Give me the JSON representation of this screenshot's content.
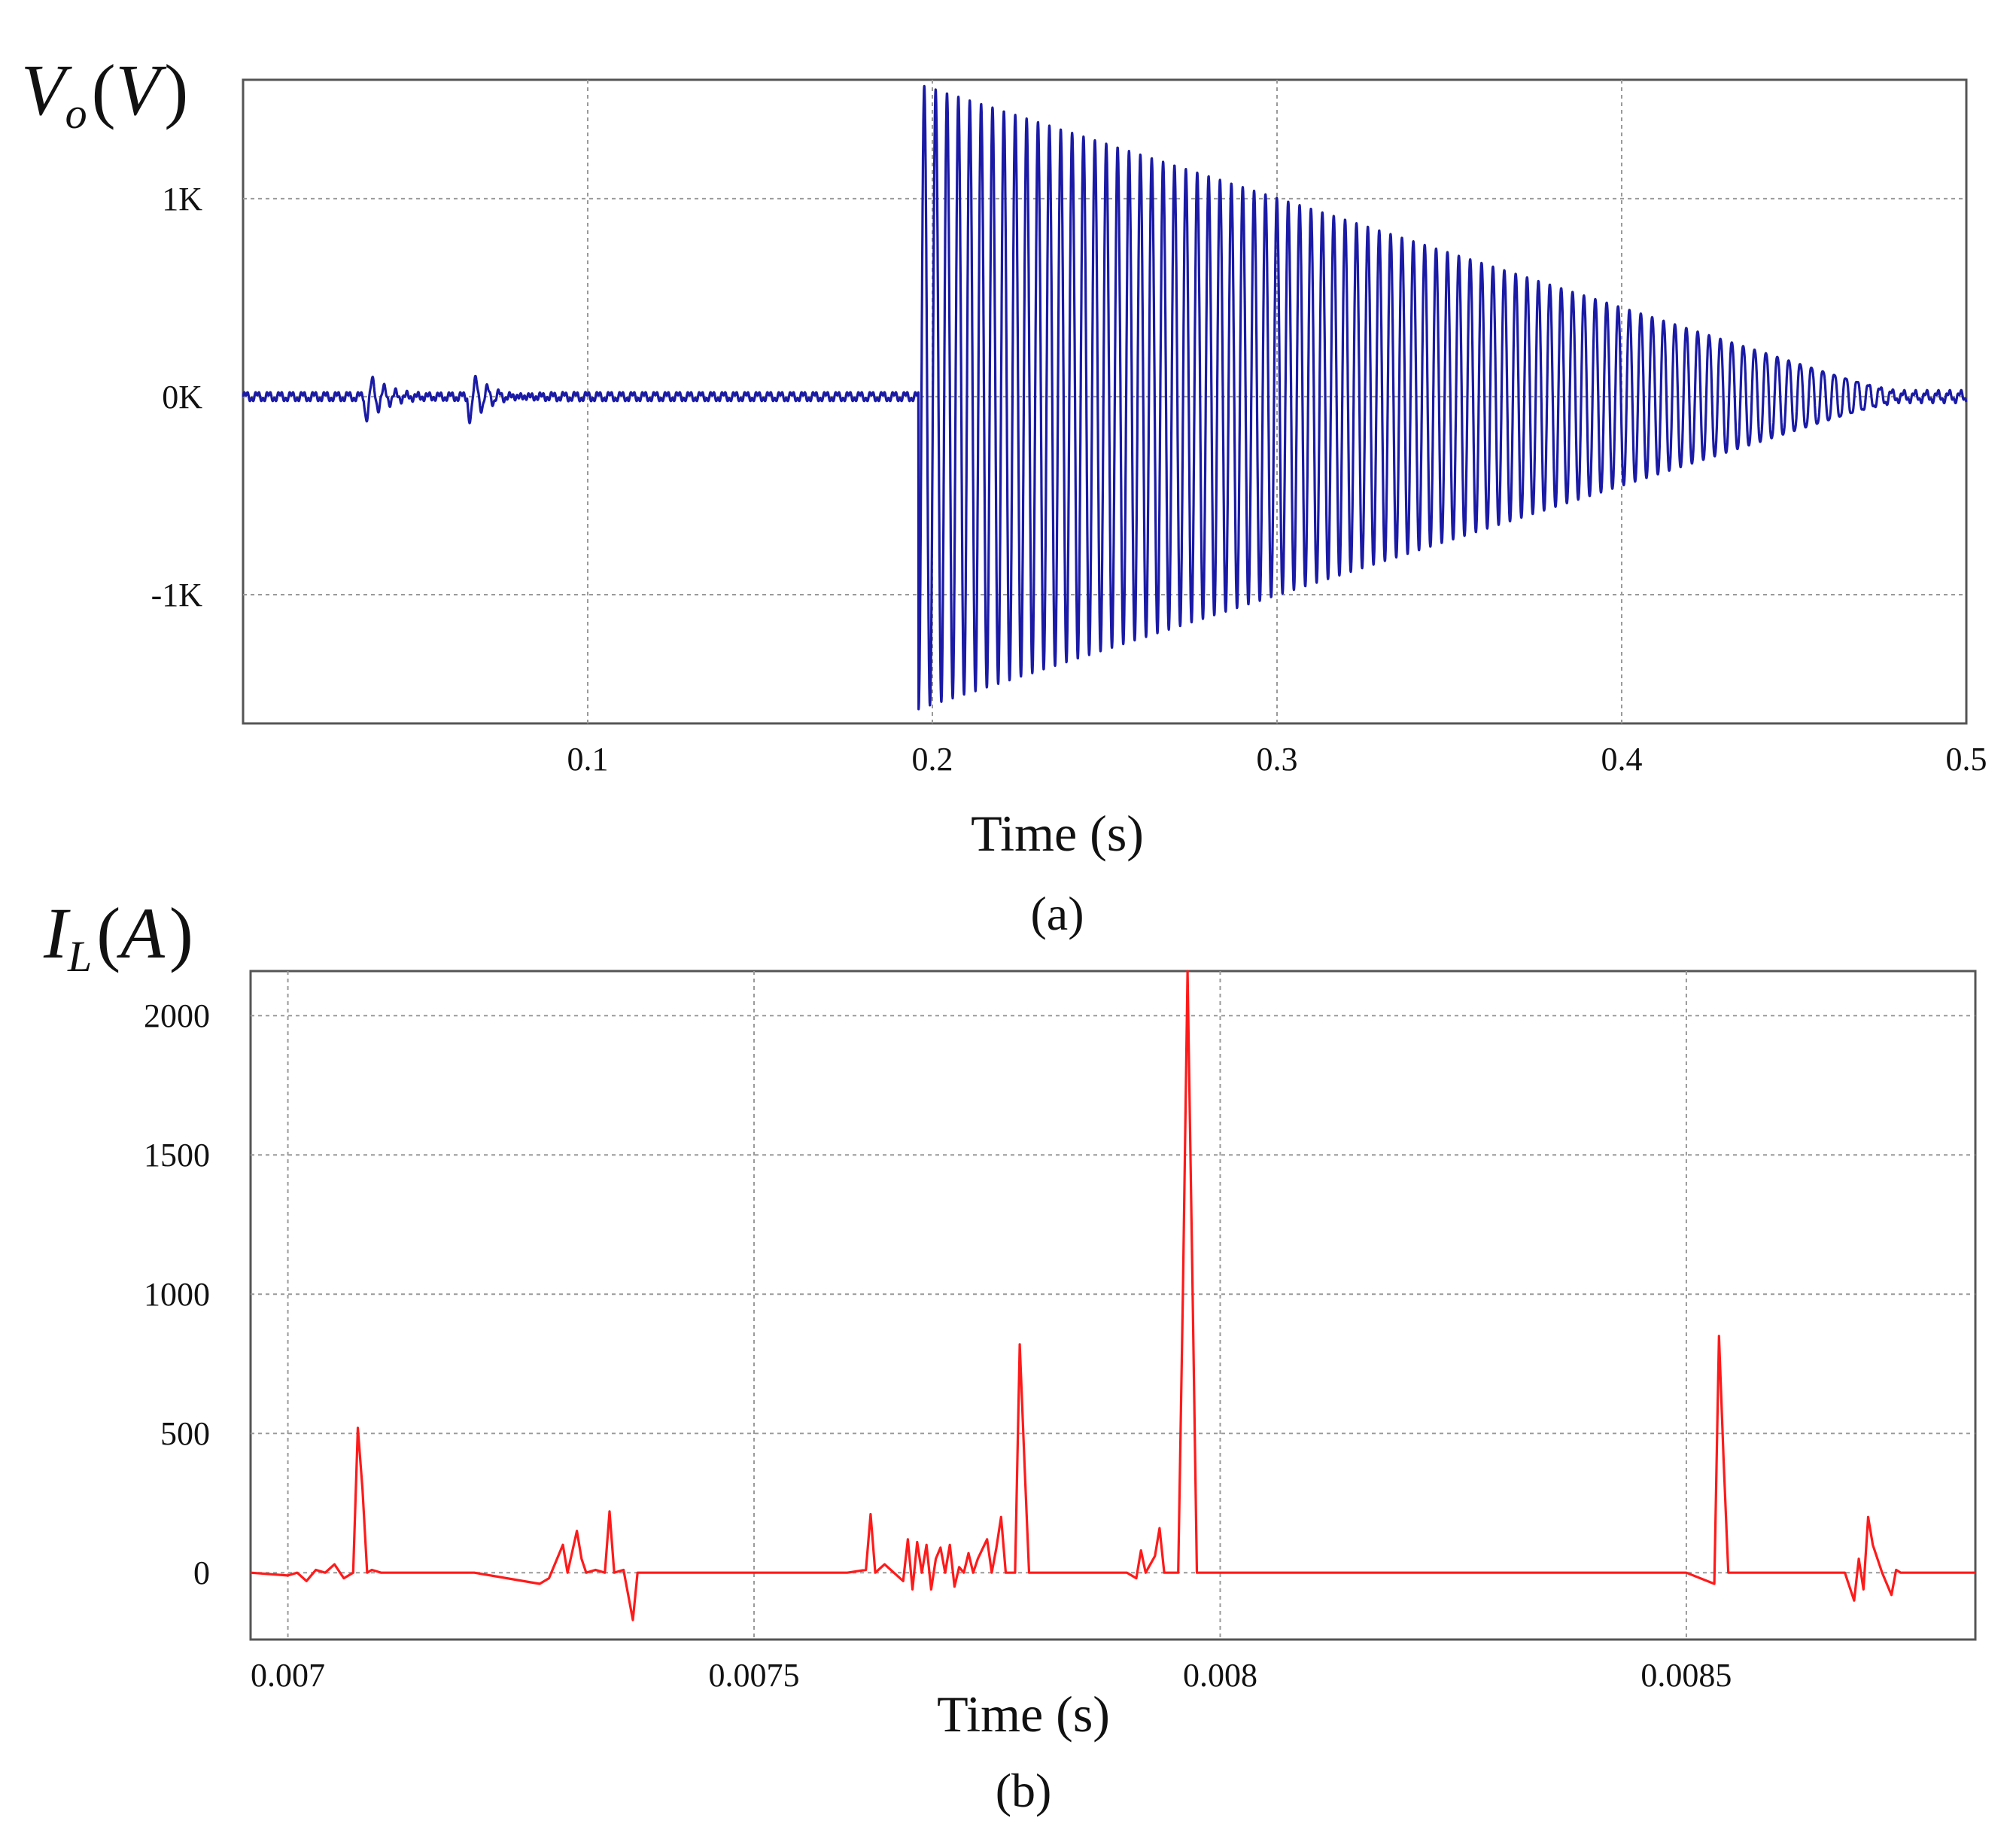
{
  "chart_data": [
    {
      "id": "a",
      "type": "line",
      "caption": "(a)",
      "ylabel": {
        "main": "V",
        "sub": "o",
        "unit": "V"
      },
      "xlabel": "Time (s)",
      "xlim": [
        0.0,
        0.5
      ],
      "ylim": [
        -1.65,
        1.6
      ],
      "x_ticks": [
        {
          "value": 0.1,
          "label": "0.1"
        },
        {
          "value": 0.2,
          "label": "0.2"
        },
        {
          "value": 0.3,
          "label": "0.3"
        },
        {
          "value": 0.4,
          "label": "0.4"
        },
        {
          "value": 0.5,
          "label": "0.5"
        }
      ],
      "y_ticks": [
        {
          "value": 1.0,
          "label": "1K"
        },
        {
          "value": 0.0,
          "label": "0K"
        },
        {
          "value": -1.0,
          "label": "-1K"
        }
      ],
      "grid": true,
      "color": "#1a1aa6",
      "series": [
        {
          "name": "Vo",
          "description": "Output voltage (kV): small ripple near 0, short transients at t=0.035 and t=0.065, large oscillation starting at t=0.196 with amplitude decaying linearly from about 1.6 kV to near 0 by t=0.48",
          "baseline_ripple": 0.03,
          "transients": [
            {
              "t": 0.035,
              "amp": 0.12,
              "decay": 0.006
            },
            {
              "t": 0.065,
              "amp": 0.13,
              "decay": 0.007
            }
          ],
          "oscillation": {
            "start": 0.196,
            "end": 0.48,
            "period": 0.0033,
            "amp_start_pos": 1.6,
            "amp_start_neg": 1.6,
            "amp_end": 0.03
          }
        }
      ]
    },
    {
      "id": "b",
      "type": "line",
      "caption": "(b)",
      "ylabel": {
        "main": "I",
        "sub": "L",
        "unit": "A"
      },
      "xlabel": "Time (s)",
      "xlim": [
        0.00696,
        0.00881
      ],
      "ylim": [
        -240,
        2160
      ],
      "x_ticks": [
        {
          "value": 0.007,
          "label": "0.007"
        },
        {
          "value": 0.0075,
          "label": "0.0075"
        },
        {
          "value": 0.008,
          "label": "0.008"
        },
        {
          "value": 0.0085,
          "label": "0.0085"
        }
      ],
      "y_ticks": [
        {
          "value": 2000,
          "label": "2000"
        },
        {
          "value": 1500,
          "label": "1500"
        },
        {
          "value": 1000,
          "label": "1000"
        },
        {
          "value": 500,
          "label": "500"
        },
        {
          "value": 0,
          "label": "0"
        }
      ],
      "grid": true,
      "color": "#ff1a1a",
      "series": [
        {
          "name": "IL",
          "x": [
            0.00696,
            0.007,
            0.00701,
            0.00702,
            0.00703,
            0.00704,
            0.00705,
            0.00706,
            0.00707,
            0.007075,
            0.00708,
            0.007085,
            0.00709,
            0.0071,
            0.0072,
            0.00727,
            0.00728,
            0.007295,
            0.0073,
            0.00731,
            0.007315,
            0.00732,
            0.00733,
            0.00734,
            0.007345,
            0.00735,
            0.00736,
            0.00737,
            0.007375,
            0.00738,
            0.0074,
            0.0075,
            0.0076,
            0.00762,
            0.007625,
            0.00763,
            0.00764,
            0.00766,
            0.007665,
            0.00767,
            0.007675,
            0.00768,
            0.007685,
            0.00769,
            0.007695,
            0.0077,
            0.007705,
            0.00771,
            0.007715,
            0.00772,
            0.007725,
            0.00773,
            0.007735,
            0.00774,
            0.00775,
            0.007755,
            0.00776,
            0.007765,
            0.00777,
            0.00778,
            0.007785,
            0.00779,
            0.007795,
            0.0078,
            0.0079,
            0.00791,
            0.007915,
            0.00792,
            0.00793,
            0.007935,
            0.00794,
            0.007955,
            0.00796,
            0.007965,
            0.00797,
            0.007975,
            0.00798,
            0.008,
            0.0082,
            0.0085,
            0.00853,
            0.008535,
            0.00854,
            0.008545,
            0.00855,
            0.0086,
            0.00867,
            0.00868,
            0.008685,
            0.00869,
            0.008695,
            0.0087,
            0.00871,
            0.00872,
            0.008725,
            0.00873,
            0.0088,
            0.00881
          ],
          "y": [
            0,
            -10,
            0,
            -30,
            10,
            0,
            30,
            -20,
            0,
            520,
            300,
            0,
            10,
            0,
            0,
            -40,
            -20,
            100,
            0,
            150,
            50,
            0,
            10,
            0,
            220,
            0,
            10,
            -170,
            0,
            0,
            0,
            0,
            0,
            10,
            210,
            0,
            30,
            -30,
            120,
            -60,
            110,
            0,
            100,
            -60,
            50,
            90,
            0,
            100,
            -50,
            20,
            0,
            70,
            0,
            50,
            120,
            0,
            90,
            200,
            0,
            0,
            820,
            400,
            0,
            0,
            0,
            -20,
            80,
            0,
            60,
            160,
            0,
            0,
            1000,
            2160,
            1100,
            0,
            0,
            0,
            0,
            0,
            -40,
            850,
            400,
            0,
            0,
            0,
            0,
            -100,
            50,
            -60,
            200,
            100,
            0,
            -80,
            10,
            0,
            0,
            0
          ]
        }
      ]
    }
  ]
}
